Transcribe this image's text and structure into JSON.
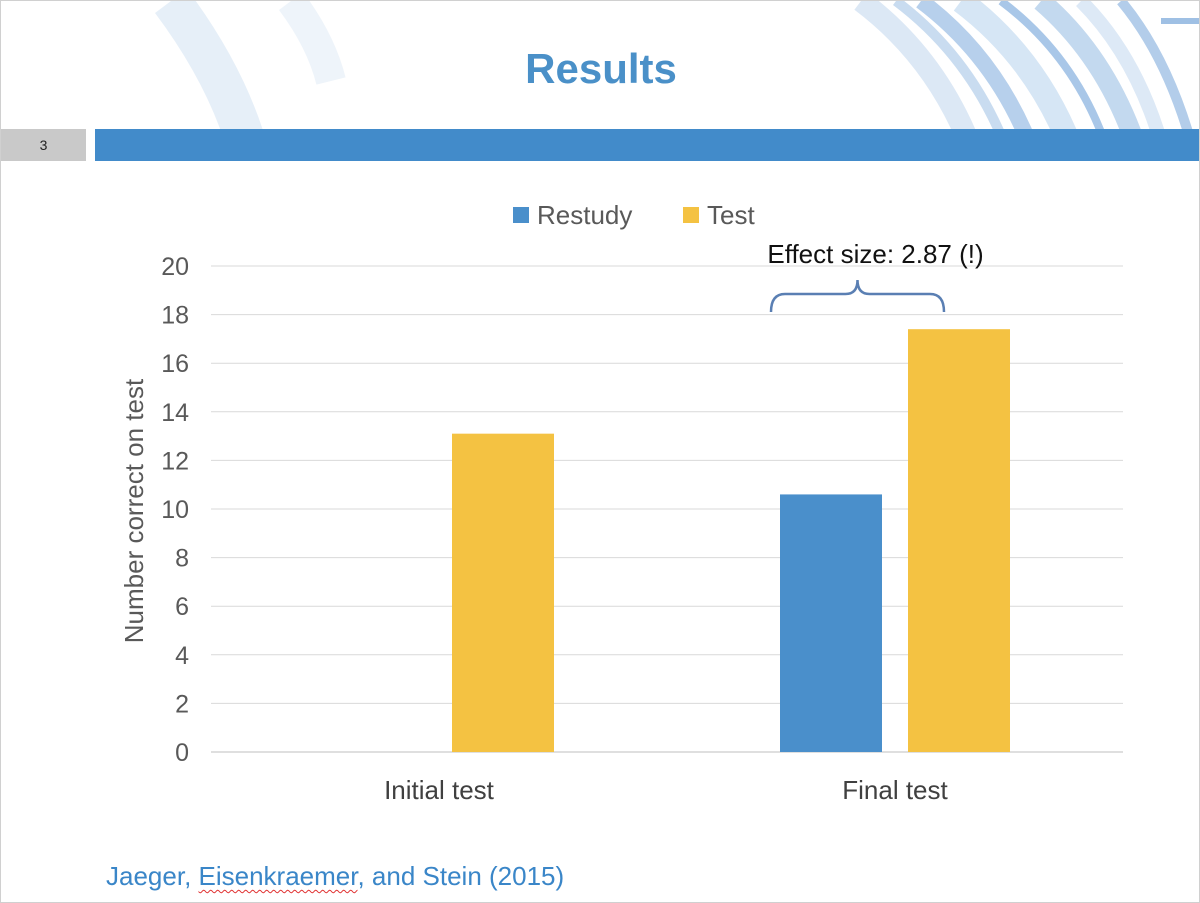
{
  "slide": {
    "title": "Results",
    "number": "3",
    "citation": {
      "part1": "Jaeger, ",
      "part2": "Eisenkraemer",
      "part3": ", and Stein (2015)"
    }
  },
  "colors": {
    "restudy": "#4a8fcb",
    "test": "#f4c242",
    "accent": "#428bca"
  },
  "chart_data": {
    "type": "bar",
    "title": "",
    "xlabel": "",
    "ylabel": "Number correct on test",
    "categories": [
      "Initial test",
      "Final test"
    ],
    "series": [
      {
        "name": "Restudy",
        "values": [
          0,
          10.6
        ]
      },
      {
        "name": "Test",
        "values": [
          13.1,
          17.4
        ]
      }
    ],
    "ylim": [
      0,
      20
    ],
    "yticks": [
      0,
      2,
      4,
      6,
      8,
      10,
      12,
      14,
      16,
      18,
      20
    ],
    "grid": true,
    "legend": "top",
    "annotation": {
      "text": "Effect size: 2.87 (!)",
      "category": "Final test"
    }
  }
}
